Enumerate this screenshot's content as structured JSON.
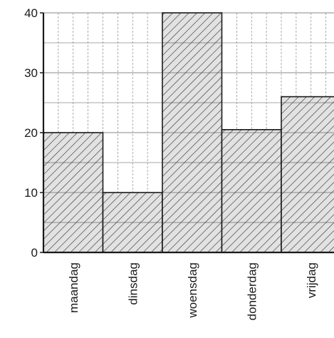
{
  "chart_data": {
    "type": "bar",
    "categories": [
      "maandag",
      "dinsdag",
      "woensdag",
      "donderdag",
      "vrijdag"
    ],
    "values": [
      20,
      10,
      40,
      20.5,
      26
    ],
    "yticks": [
      0,
      10,
      20,
      30,
      40
    ],
    "ylim": [
      0,
      40
    ],
    "grid": true,
    "bar_pattern": "diagonal-hatch",
    "colors": {
      "bar_fill": "#e2e2e2",
      "hatch": "#3a3a3a",
      "edge": "#1a1a1a",
      "grid": "#8a8a8a"
    }
  }
}
